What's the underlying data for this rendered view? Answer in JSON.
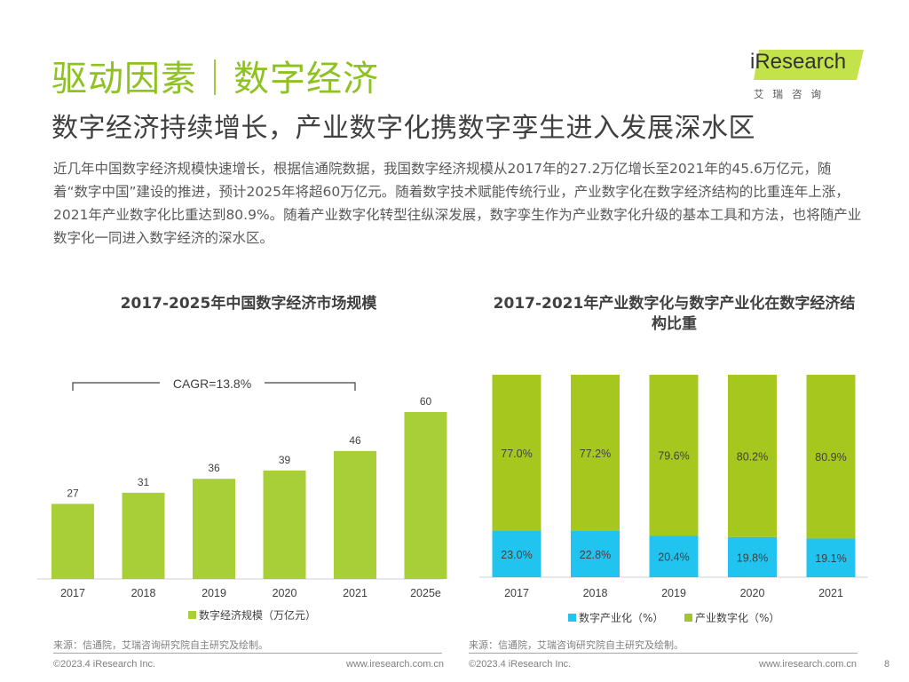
{
  "header": {
    "title": "驱动因素｜数字经济",
    "subtitle": "数字经济持续增长，产业数字化携数字孪生进入发展深水区",
    "intro": "近几年中国数字经济规模快速增长，根据信通院数据，我国数字经济规模从2017年的27.2万亿增长至2021年的45.6万亿元，随着“数字中国”建设的推进，预计2025年将超60万亿元。随着数字技术赋能传统行业，产业数字化在数字经济结构的比重连年上涨，2021年产业数字化比重达到80.9%。随着产业数字化转型往纵深发展，数字孪生作为产业数字化升级的基本工具和方法，也将随产业数字化一同进入数字经济的深水区。"
  },
  "logo": {
    "name": "iResearch",
    "sub": "艾瑞咨询"
  },
  "colors": {
    "title_green": "#8dc21f",
    "bar_green": "#a9cf38",
    "stack_green": "#a6c81e",
    "stack_cyan": "#21c4ef"
  },
  "chart_data": [
    {
      "type": "bar",
      "title": "2017-2025年中国数字经济市场规模",
      "categories": [
        "2017",
        "2018",
        "2019",
        "2020",
        "2021",
        "2025e"
      ],
      "series": [
        {
          "name": "数字经济规模（万亿元）",
          "values": [
            27,
            31,
            36,
            39,
            46,
            60
          ]
        }
      ],
      "annotation": "CAGR=13.8%",
      "legend_position": "bottom"
    },
    {
      "type": "bar",
      "stacked": true,
      "percent": true,
      "title": "2017-2021年产业数字化与数字产业化在数字经济结构比重",
      "categories": [
        "2017",
        "2018",
        "2019",
        "2020",
        "2021"
      ],
      "series": [
        {
          "name": "数字产业化（%）",
          "values": [
            23.0,
            22.8,
            20.4,
            19.8,
            19.1
          ],
          "labels": [
            "23.0%",
            "22.8%",
            "20.4%",
            "19.8%",
            "19.1%"
          ]
        },
        {
          "name": "产业数字化（%）",
          "values": [
            77.0,
            77.2,
            79.6,
            80.2,
            80.9
          ],
          "labels": [
            "77.0%",
            "77.2%",
            "79.6%",
            "80.2%",
            "80.9%"
          ]
        }
      ],
      "ylim": [
        0,
        100
      ],
      "legend_position": "bottom"
    }
  ],
  "footer": {
    "source": "来源：信通院，艾瑞咨询研究院自主研究及绘制。",
    "copyright": "©2023.4 iResearch Inc.",
    "website": "www.iresearch.com.cn",
    "page": "8"
  }
}
